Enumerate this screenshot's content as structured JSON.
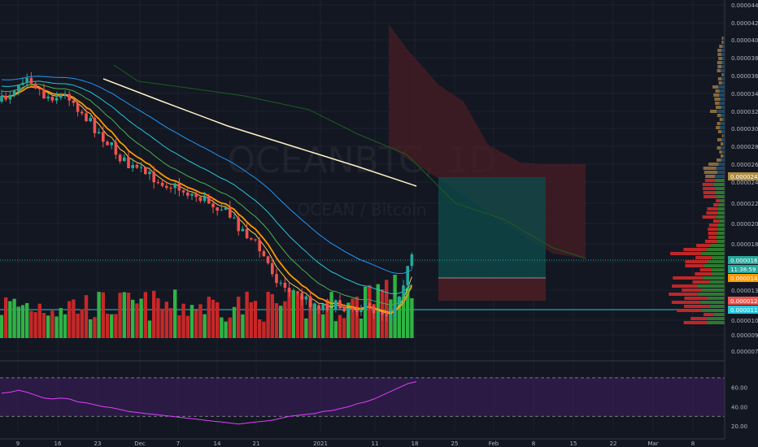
{
  "watermark": {
    "symbol": "OCEANBTC, 1D",
    "description": "OCEAN / Bitcoin"
  },
  "chart_data": [
    {
      "type": "candlestick",
      "title": "OCEANBTC, 1D",
      "subtitle": "OCEAN / Bitcoin",
      "x_labels": [
        "9",
        "16",
        "23",
        "Dec",
        "7",
        "14",
        "21",
        "2021",
        "11",
        "18",
        "25",
        "Feb",
        "8",
        "15",
        "22",
        "Mar",
        "8"
      ],
      "y_ticks": [
        "0.00004400",
        "0.00004200",
        "0.00004000",
        "0.00003800",
        "0.00003600",
        "0.00003400",
        "0.00003200",
        "0.00003000",
        "0.00002800",
        "0.00002600",
        "0.00002400",
        "0.00002200",
        "0.00002000",
        "0.00001800",
        "0.00001600",
        "0.00001350",
        "0.00001060",
        "0.00000920",
        "0.00000790"
      ],
      "ylim": [
        7.9e-06,
        4.4e-05
      ],
      "price_badges": [
        {
          "label": "0.00002484",
          "color": "#b08c42"
        },
        {
          "label": "0.00001637",
          "color": "#26a69a"
        },
        {
          "label": "11:38:59",
          "color": "#26a69a"
        },
        {
          "label": "0.00001472",
          "color": "#ff9800"
        },
        {
          "label": "0.00001250",
          "color": "#ef5350"
        },
        {
          "label": "0.00001162",
          "color": "#26c6da"
        }
      ],
      "colors": {
        "up": "#26a69a",
        "down": "#ef5350",
        "volume_up": "#2fb344",
        "volume_down": "#c62828"
      },
      "price_range": {
        "start": 3.21e-05,
        "low": 1.04e-05,
        "last": 1.64e-05
      },
      "grid": true,
      "volume_panel": true
    },
    {
      "type": "line",
      "title": "",
      "y_ticks": [
        "60.00",
        "40.00",
        "20.00"
      ],
      "ylim": [
        15,
        80
      ],
      "bands": [
        70,
        30
      ],
      "series": [
        {
          "color": "#e040fb",
          "values": [
            54,
            55,
            57,
            55,
            52,
            49,
            48,
            49,
            48,
            45,
            44,
            42,
            40,
            39,
            37,
            35,
            34,
            33,
            32,
            31,
            30,
            29,
            28,
            27,
            26,
            25,
            24,
            23,
            22,
            23,
            24,
            25,
            26,
            28,
            30,
            31,
            32,
            33,
            35,
            36,
            38,
            40,
            43,
            45,
            48,
            52,
            56,
            60,
            64,
            66
          ]
        }
      ]
    }
  ]
}
